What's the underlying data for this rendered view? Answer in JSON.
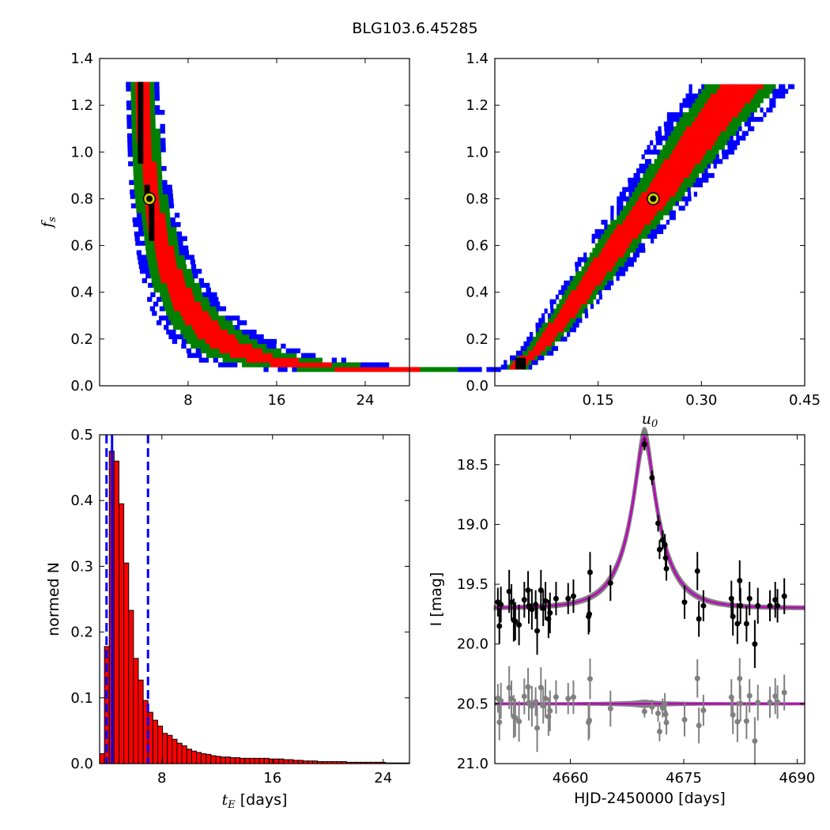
{
  "title": "BLG103.6.45285",
  "colors": {
    "blue": "#0000ff",
    "green": "#008000",
    "red": "#ff0000",
    "black": "#000000",
    "gray": "#808080",
    "magenta": "#bf00bf",
    "marker_face": "#cccc00"
  },
  "chart_data": [
    {
      "panel": "top-left",
      "type": "heatmap",
      "ylabel": "f_s",
      "ylabel_main": "f",
      "ylabel_sub": "s",
      "xlabel": "",
      "xlim": [
        0,
        28
      ],
      "ylim": [
        0,
        1.4
      ],
      "xticks": [
        8,
        16,
        24
      ],
      "xtick_labels": [
        "8",
        "16",
        "24"
      ],
      "yticks": [
        0,
        0.2,
        0.4,
        0.6,
        0.8,
        1.0,
        1.2,
        1.4
      ],
      "ytick_labels": [
        "0.0",
        "0.2",
        "0.4",
        "0.6",
        "0.8",
        "1.0",
        "1.2",
        "1.4"
      ],
      "levels": [
        "blue",
        "green",
        "red",
        "black"
      ],
      "ridge": [
        [
          3.7,
          1.3
        ],
        [
          3.9,
          1.1
        ],
        [
          4.1,
          0.95
        ],
        [
          4.3,
          0.85
        ],
        [
          4.5,
          0.8
        ],
        [
          4.8,
          0.72
        ],
        [
          5.2,
          0.64
        ],
        [
          5.6,
          0.56
        ],
        [
          6.2,
          0.48
        ],
        [
          7.0,
          0.4
        ],
        [
          8.0,
          0.32
        ],
        [
          9.2,
          0.26
        ],
        [
          10.5,
          0.2
        ],
        [
          12.0,
          0.16
        ],
        [
          13.5,
          0.13
        ],
        [
          15.5,
          0.11
        ],
        [
          18,
          0.09
        ],
        [
          21,
          0.08
        ],
        [
          25,
          0.07
        ]
      ],
      "best_fit": {
        "x": 4.5,
        "y": 0.8
      }
    },
    {
      "panel": "top-right",
      "type": "heatmap",
      "xlabel": "u_0",
      "xlabel_main": "u",
      "xlabel_sub": "0",
      "ylabel": "",
      "xlim": [
        0,
        0.45
      ],
      "ylim": [
        0,
        1.4
      ],
      "xticks": [
        0.15,
        0.3,
        0.45
      ],
      "xtick_labels": [
        "0.15",
        "0.30",
        "0.45"
      ],
      "yticks": [
        0,
        0.2,
        0.4,
        0.6,
        0.8,
        1.0,
        1.2,
        1.4
      ],
      "ytick_labels": [
        "0.0",
        "0.2",
        "0.4",
        "0.6",
        "0.8",
        "1.0",
        "1.2",
        "1.4"
      ],
      "levels": [
        "blue",
        "green",
        "red",
        "black"
      ],
      "ridge": [
        [
          0.03,
          0.09
        ],
        [
          0.06,
          0.15
        ],
        [
          0.1,
          0.3
        ],
        [
          0.14,
          0.46
        ],
        [
          0.18,
          0.62
        ],
        [
          0.23,
          0.8
        ],
        [
          0.27,
          0.96
        ],
        [
          0.31,
          1.12
        ],
        [
          0.36,
          1.3
        ]
      ],
      "best_fit": {
        "x": 0.23,
        "y": 0.8
      }
    },
    {
      "panel": "bottom-left",
      "type": "bar",
      "xlabel": "t_E  [days]",
      "xlabel_main": "t",
      "xlabel_sub": "E",
      "xlabel_tail": " [days]",
      "ylabel": "normed N",
      "xlim": [
        3.5,
        25.9
      ],
      "ylim": [
        0,
        0.5
      ],
      "xticks": [
        8,
        16,
        24
      ],
      "xtick_labels": [
        "8",
        "16",
        "24"
      ],
      "yticks": [
        0,
        0.1,
        0.2,
        0.3,
        0.4,
        0.5
      ],
      "ytick_labels": [
        "0.0",
        "0.1",
        "0.2",
        "0.3",
        "0.4",
        "0.5"
      ],
      "bin_start": 3.5,
      "bin_width": 0.35,
      "values": [
        0.015,
        0.178,
        0.475,
        0.46,
        0.395,
        0.305,
        0.233,
        0.16,
        0.127,
        0.096,
        0.078,
        0.066,
        0.057,
        0.046,
        0.043,
        0.037,
        0.031,
        0.027,
        0.022,
        0.019,
        0.017,
        0.015,
        0.014,
        0.012,
        0.011,
        0.01,
        0.01,
        0.009,
        0.009,
        0.008,
        0.008,
        0.008,
        0.008,
        0.008,
        0.008,
        0.007,
        0.007,
        0.007,
        0.006,
        0.006,
        0.005,
        0.005,
        0.004,
        0.004,
        0.004,
        0.003,
        0.003,
        0.003,
        0.003,
        0.003,
        0.003,
        0.002,
        0.002,
        0.002,
        0.002,
        0.002,
        0.002,
        0.002,
        0.002,
        0.001,
        0.001,
        0.001,
        0.001,
        0.001
      ],
      "median": 4.4,
      "interval": [
        4.0,
        7.0
      ]
    },
    {
      "panel": "bottom-right",
      "type": "scatter",
      "xlabel": "HJD-2450000 [days]",
      "ylabel": "I [mag]",
      "xlim": [
        4650,
        4691
      ],
      "ylim": [
        21.0,
        18.25
      ],
      "y_inverted": true,
      "xticks": [
        4660,
        4675,
        4690
      ],
      "xtick_labels": [
        "4660",
        "4675",
        "4690"
      ],
      "yticks": [
        18.5,
        19.0,
        19.5,
        20.0,
        20.5,
        21.0
      ],
      "ytick_labels": [
        "18.5",
        "19.0",
        "19.5",
        "20.0",
        "20.5",
        "21.0"
      ],
      "model": {
        "t0": 4669.8,
        "u0": 0.23,
        "tE": 4.5,
        "fs": 0.8,
        "I_base": 19.7
      },
      "residual_offset": 20.5,
      "points": [
        {
          "x": 4650.4,
          "y": 19.65,
          "e": 0.12
        },
        {
          "x": 4650.6,
          "y": 19.85,
          "e": 0.15
        },
        {
          "x": 4650.8,
          "y": 19.67,
          "e": 0.15
        },
        {
          "x": 4651.9,
          "y": 19.56,
          "e": 0.18
        },
        {
          "x": 4652.2,
          "y": 19.65,
          "e": 0.15
        },
        {
          "x": 4652.5,
          "y": 19.8,
          "e": 0.18
        },
        {
          "x": 4652.7,
          "y": 19.81,
          "e": 0.16
        },
        {
          "x": 4653.2,
          "y": 19.84,
          "e": 0.17
        },
        {
          "x": 4653.9,
          "y": 19.63,
          "e": 0.15
        },
        {
          "x": 4654.4,
          "y": 19.55,
          "e": 0.16
        },
        {
          "x": 4654.5,
          "y": 19.68,
          "e": 0.15
        },
        {
          "x": 4654.9,
          "y": 19.71,
          "e": 0.17
        },
        {
          "x": 4655.4,
          "y": 19.67,
          "e": 0.12
        },
        {
          "x": 4655.6,
          "y": 19.89,
          "e": 0.2
        },
        {
          "x": 4656.1,
          "y": 19.55,
          "e": 0.17
        },
        {
          "x": 4656.4,
          "y": 19.7,
          "e": 0.15
        },
        {
          "x": 4656.7,
          "y": 19.64,
          "e": 0.16
        },
        {
          "x": 4657.1,
          "y": 19.79,
          "e": 0.16
        },
        {
          "x": 4657.3,
          "y": 19.74,
          "e": 0.17
        },
        {
          "x": 4658.1,
          "y": 19.62,
          "e": 0.14
        },
        {
          "x": 4659.7,
          "y": 19.62,
          "e": 0.13
        },
        {
          "x": 4660.4,
          "y": 19.6,
          "e": 0.14
        },
        {
          "x": 4662.4,
          "y": 19.77,
          "e": 0.15
        },
        {
          "x": 4662.5,
          "y": 19.75,
          "e": 0.15
        },
        {
          "x": 4662.6,
          "y": 19.4,
          "e": 0.17
        },
        {
          "x": 4665.3,
          "y": 19.49,
          "e": 0.15
        },
        {
          "x": 4669.8,
          "y": 18.33,
          "e": 0.05
        },
        {
          "x": 4670.8,
          "y": 18.61,
          "e": 0.06
        },
        {
          "x": 4671.6,
          "y": 18.99,
          "e": 0.07
        },
        {
          "x": 4671.8,
          "y": 19.21,
          "e": 0.08
        },
        {
          "x": 4672.2,
          "y": 19.13,
          "e": 0.08
        },
        {
          "x": 4672.5,
          "y": 19.17,
          "e": 0.09
        },
        {
          "x": 4672.6,
          "y": 19.28,
          "e": 0.09
        },
        {
          "x": 4672.7,
          "y": 19.37,
          "e": 0.1
        },
        {
          "x": 4675.1,
          "y": 19.65,
          "e": 0.14
        },
        {
          "x": 4676.8,
          "y": 19.39,
          "e": 0.16
        },
        {
          "x": 4677.0,
          "y": 19.79,
          "e": 0.15
        },
        {
          "x": 4677.6,
          "y": 19.68,
          "e": 0.13
        },
        {
          "x": 4681.3,
          "y": 19.62,
          "e": 0.15
        },
        {
          "x": 4681.5,
          "y": 19.77,
          "e": 0.16
        },
        {
          "x": 4682.1,
          "y": 19.83,
          "e": 0.17
        },
        {
          "x": 4682.4,
          "y": 19.47,
          "e": 0.17
        },
        {
          "x": 4682.5,
          "y": 19.68,
          "e": 0.15
        },
        {
          "x": 4683.3,
          "y": 19.83,
          "e": 0.15
        },
        {
          "x": 4683.7,
          "y": 19.62,
          "e": 0.14
        },
        {
          "x": 4684.4,
          "y": 20.0,
          "e": 0.2
        },
        {
          "x": 4684.8,
          "y": 19.68,
          "e": 0.15
        },
        {
          "x": 4686.4,
          "y": 19.68,
          "e": 0.13
        },
        {
          "x": 4687.1,
          "y": 19.63,
          "e": 0.15
        },
        {
          "x": 4687.4,
          "y": 19.68,
          "e": 0.14
        },
        {
          "x": 4688.3,
          "y": 19.6,
          "e": 0.15
        }
      ]
    }
  ]
}
